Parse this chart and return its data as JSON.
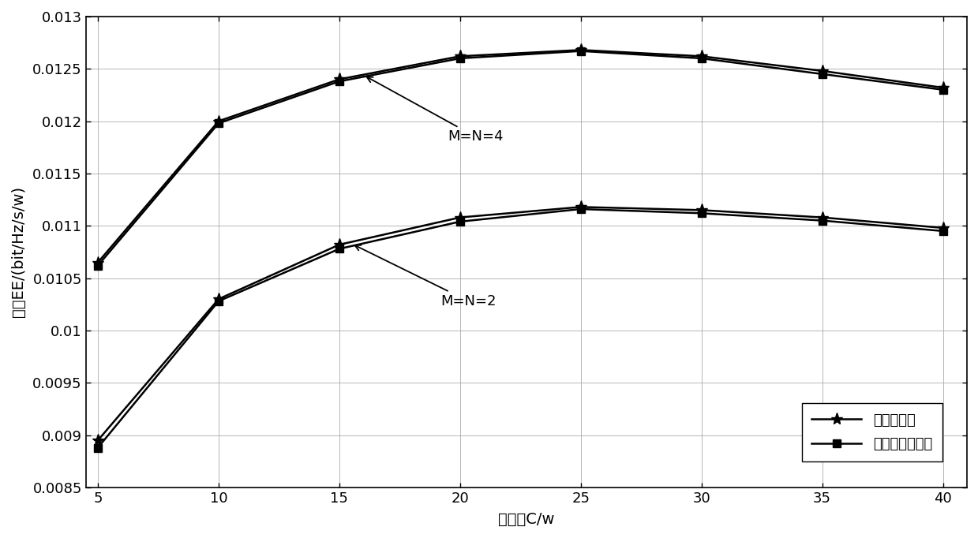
{
  "x": [
    5,
    10,
    15,
    20,
    25,
    30,
    35,
    40
  ],
  "exhaustive_MN4": [
    0.01065,
    0.012,
    0.0124,
    0.01262,
    0.01268,
    0.01262,
    0.01248,
    0.01232
  ],
  "proposed_MN4": [
    0.01062,
    0.01198,
    0.01238,
    0.0126,
    0.01267,
    0.0126,
    0.01245,
    0.0123
  ],
  "exhaustive_MN2": [
    0.00895,
    0.0103,
    0.01082,
    0.01108,
    0.01118,
    0.01115,
    0.01108,
    0.01098
  ],
  "proposed_MN2": [
    0.00888,
    0.01028,
    0.01078,
    0.01104,
    0.01116,
    0.01112,
    0.01105,
    0.01095
  ],
  "line_color": "#000000",
  "xlabel": "总功率C/w",
  "ylabel": "能效EE/(bit/Hz/s/w)",
  "xlim": [
    4.5,
    41
  ],
  "ylim": [
    0.0085,
    0.013
  ],
  "yticks": [
    0.0085,
    0.009,
    0.0095,
    0.01,
    0.0105,
    0.011,
    0.0115,
    0.012,
    0.0125,
    0.013
  ],
  "xticks": [
    5,
    10,
    15,
    20,
    25,
    30,
    35,
    40
  ],
  "legend_exhaustive": "穷举搜索法",
  "legend_proposed": "本发明优化算法",
  "annotation_MN4": "M=N=4",
  "annotation_MN2": "M=N=2"
}
